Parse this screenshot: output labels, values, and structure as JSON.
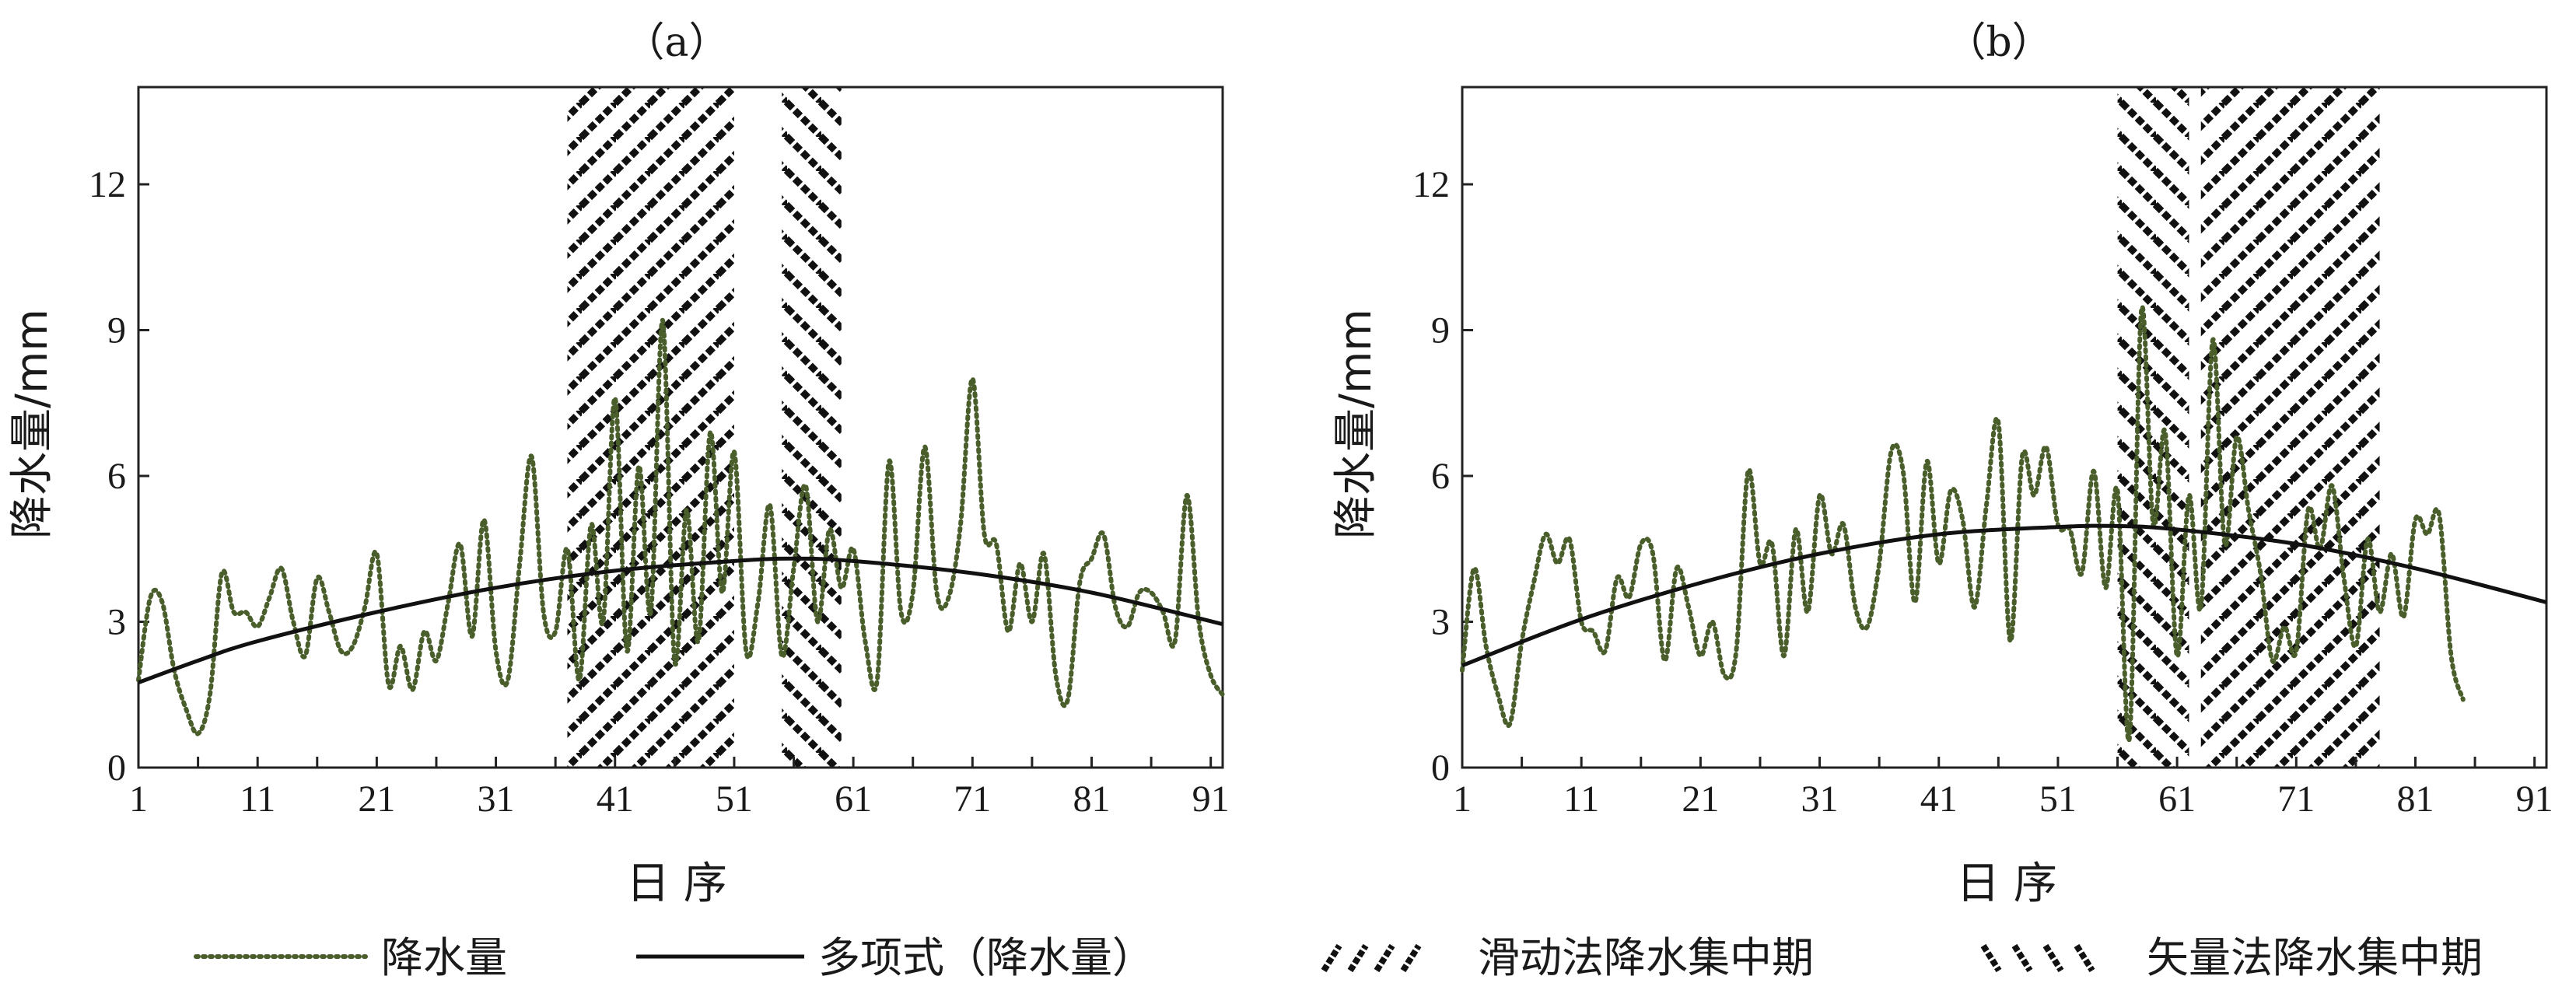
{
  "chart_data": [
    {
      "type": "line",
      "panel_title": "（a）",
      "xlabel": "日 序",
      "ylabel": "降水量/mm",
      "xlim": [
        1,
        92
      ],
      "ylim": [
        0,
        14
      ],
      "xticks": [
        1,
        11,
        21,
        31,
        41,
        51,
        61,
        71,
        81,
        91
      ],
      "yticks": [
        0,
        3,
        6,
        9,
        12
      ],
      "precip_peaks": [
        [
          1,
          1.8
        ],
        [
          2,
          3.5
        ],
        [
          3,
          3.4
        ],
        [
          4,
          2
        ],
        [
          5,
          1.2
        ],
        [
          6,
          0.7
        ],
        [
          7,
          1.5
        ],
        [
          8,
          4
        ],
        [
          9,
          3.2
        ],
        [
          10,
          3.2
        ],
        [
          11,
          2.9
        ],
        [
          12,
          3.5
        ],
        [
          13,
          4.1
        ],
        [
          14,
          3
        ],
        [
          15,
          2.3
        ],
        [
          16,
          3.9
        ],
        [
          17,
          3.2
        ],
        [
          18,
          2.4
        ],
        [
          19,
          2.5
        ],
        [
          20,
          3.3
        ],
        [
          21,
          4.4
        ],
        [
          22,
          1.7
        ],
        [
          23,
          2.5
        ],
        [
          24,
          1.6
        ],
        [
          25,
          2.8
        ],
        [
          26,
          2.2
        ],
        [
          27,
          3.4
        ],
        [
          28,
          4.6
        ],
        [
          29,
          2.7
        ],
        [
          30,
          5.1
        ],
        [
          31,
          2.4
        ],
        [
          32,
          1.8
        ],
        [
          33,
          4.2
        ],
        [
          34,
          6.4
        ],
        [
          35,
          3.2
        ],
        [
          36,
          2.8
        ],
        [
          37,
          4.5
        ],
        [
          38,
          1.8
        ],
        [
          39,
          5
        ],
        [
          40,
          3
        ],
        [
          41,
          7.6
        ],
        [
          42,
          2.4
        ],
        [
          43,
          6.2
        ],
        [
          44,
          3.2
        ],
        [
          45,
          9.2
        ],
        [
          46,
          2.2
        ],
        [
          47,
          5.3
        ],
        [
          48,
          2.6
        ],
        [
          49,
          6.9
        ],
        [
          50,
          3.6
        ],
        [
          51,
          6.5
        ],
        [
          52,
          2.4
        ],
        [
          53,
          3.4
        ],
        [
          54,
          5.4
        ],
        [
          55,
          2.3
        ],
        [
          56,
          4.1
        ],
        [
          57,
          5.8
        ],
        [
          58,
          3
        ],
        [
          59,
          4.9
        ],
        [
          60,
          3.7
        ],
        [
          61,
          4.5
        ],
        [
          62,
          2.6
        ],
        [
          63,
          1.8
        ],
        [
          64,
          6.3
        ],
        [
          65,
          3.2
        ],
        [
          66,
          3.6
        ],
        [
          67,
          6.6
        ],
        [
          68,
          3.6
        ],
        [
          69,
          3.5
        ],
        [
          70,
          5
        ],
        [
          71,
          8
        ],
        [
          72,
          4.8
        ],
        [
          73,
          4.6
        ],
        [
          74,
          2.8
        ],
        [
          75,
          4.2
        ],
        [
          76,
          3
        ],
        [
          77,
          4.4
        ],
        [
          78,
          1.9
        ],
        [
          79,
          1.4
        ],
        [
          80,
          3.8
        ],
        [
          81,
          4.3
        ],
        [
          82,
          4.8
        ],
        [
          83,
          3.3
        ],
        [
          84,
          2.9
        ],
        [
          85,
          3.6
        ],
        [
          86,
          3.6
        ],
        [
          87,
          3.2
        ],
        [
          88,
          2.6
        ],
        [
          89,
          5.6
        ],
        [
          90,
          3
        ],
        [
          91,
          1.9
        ],
        [
          92,
          1.5
        ]
      ],
      "poly_fit": [
        [
          1,
          1.75
        ],
        [
          6,
          2.2
        ],
        [
          11,
          2.6
        ],
        [
          21,
          3.2
        ],
        [
          31,
          3.7
        ],
        [
          41,
          4.05
        ],
        [
          51,
          4.25
        ],
        [
          56,
          4.3
        ],
        [
          61,
          4.25
        ],
        [
          71,
          4.0
        ],
        [
          81,
          3.6
        ],
        [
          92,
          2.95
        ]
      ],
      "sliding_period": [
        37,
        51
      ],
      "vector_period": [
        55,
        60
      ]
    },
    {
      "type": "line",
      "panel_title": "（b）",
      "xlabel": "日 序",
      "ylabel": "降水量/mm",
      "xlim": [
        1,
        92
      ],
      "ylim": [
        0,
        14
      ],
      "xticks": [
        1,
        11,
        21,
        31,
        41,
        51,
        61,
        71,
        81,
        91
      ],
      "yticks": [
        0,
        3,
        6,
        9,
        12
      ],
      "precip_peaks": [
        [
          1,
          2
        ],
        [
          2,
          4.1
        ],
        [
          3,
          2.5
        ],
        [
          4,
          1.5
        ],
        [
          5,
          0.9
        ],
        [
          6,
          2.6
        ],
        [
          7,
          3.8
        ],
        [
          8,
          4.8
        ],
        [
          9,
          4.2
        ],
        [
          10,
          4.7
        ],
        [
          11,
          3
        ],
        [
          12,
          2.8
        ],
        [
          13,
          2.4
        ],
        [
          14,
          3.9
        ],
        [
          15,
          3.5
        ],
        [
          16,
          4.6
        ],
        [
          17,
          4.4
        ],
        [
          18,
          2.2
        ],
        [
          19,
          4.1
        ],
        [
          20,
          3.3
        ],
        [
          21,
          2.3
        ],
        [
          22,
          3
        ],
        [
          23,
          1.9
        ],
        [
          24,
          2.4
        ],
        [
          25,
          6.1
        ],
        [
          26,
          4.2
        ],
        [
          27,
          4.6
        ],
        [
          28,
          2.3
        ],
        [
          29,
          4.9
        ],
        [
          30,
          3.2
        ],
        [
          31,
          5.6
        ],
        [
          32,
          4.4
        ],
        [
          33,
          5
        ],
        [
          34,
          3.3
        ],
        [
          35,
          2.9
        ],
        [
          36,
          4.2
        ],
        [
          37,
          6.5
        ],
        [
          38,
          6.1
        ],
        [
          39,
          3.4
        ],
        [
          40,
          6.3
        ],
        [
          41,
          4.2
        ],
        [
          42,
          5.7
        ],
        [
          43,
          5.1
        ],
        [
          44,
          3.3
        ],
        [
          45,
          5.4
        ],
        [
          46,
          7.1
        ],
        [
          47,
          2.6
        ],
        [
          48,
          6.4
        ],
        [
          49,
          5.6
        ],
        [
          50,
          6.6
        ],
        [
          51,
          5
        ],
        [
          52,
          4.9
        ],
        [
          53,
          4
        ],
        [
          54,
          6.1
        ],
        [
          55,
          3.7
        ],
        [
          56,
          5.7
        ],
        [
          57,
          0.6
        ],
        [
          58,
          9.4
        ],
        [
          59,
          5
        ],
        [
          60,
          6.9
        ],
        [
          61,
          2.3
        ],
        [
          62,
          5.6
        ],
        [
          63,
          3.3
        ],
        [
          64,
          8.8
        ],
        [
          65,
          4.6
        ],
        [
          66,
          6.8
        ],
        [
          67,
          5.3
        ],
        [
          68,
          4
        ],
        [
          69,
          2.2
        ],
        [
          70,
          2.9
        ],
        [
          71,
          2.4
        ],
        [
          72,
          5.3
        ],
        [
          73,
          4.5
        ],
        [
          74,
          5.8
        ],
        [
          75,
          3.9
        ],
        [
          76,
          2.5
        ],
        [
          77,
          4.7
        ],
        [
          78,
          3.2
        ],
        [
          79,
          4.4
        ],
        [
          80,
          3.1
        ],
        [
          81,
          5.1
        ],
        [
          82,
          4.8
        ],
        [
          83,
          5.2
        ],
        [
          84,
          2.3
        ],
        [
          85,
          1.4
        ]
      ],
      "poly_fit": [
        [
          1,
          2.1
        ],
        [
          11,
          3.05
        ],
        [
          21,
          3.8
        ],
        [
          31,
          4.4
        ],
        [
          41,
          4.8
        ],
        [
          51,
          4.95
        ],
        [
          56,
          4.97
        ],
        [
          61,
          4.9
        ],
        [
          71,
          4.6
        ],
        [
          81,
          4.1
        ],
        [
          92,
          3.4
        ]
      ],
      "sliding_period": [
        63,
        78
      ],
      "vector_period": [
        56,
        62
      ]
    }
  ],
  "legend": {
    "precip": "降水量",
    "poly": "多项式（降水量）",
    "sliding": "滑动法降水集中期",
    "vector": "矢量法降水集中期"
  },
  "colors": {
    "precip": "#4a5e2c",
    "poly": "#111111",
    "hatch": "#111111"
  }
}
